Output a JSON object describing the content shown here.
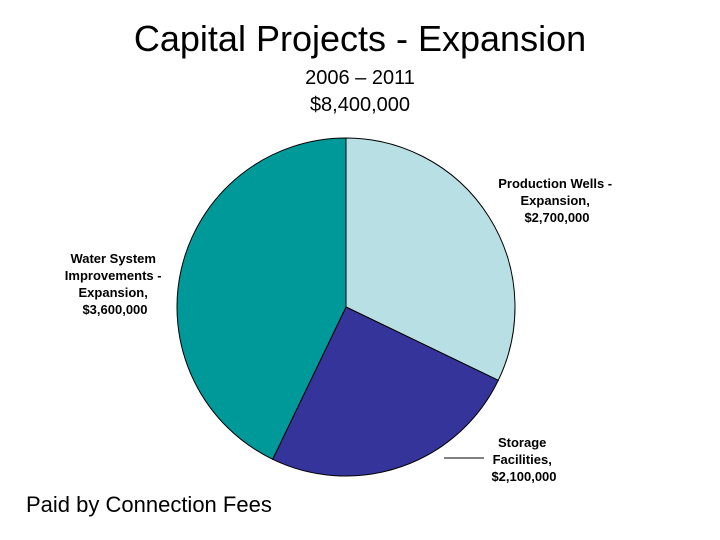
{
  "title": "Capital Projects - Expansion",
  "subtitle_years": "2006 – 2011",
  "subtitle_total": "$8,400,000",
  "footer": "Paid by Connection Fees",
  "chart_data": {
    "type": "pie",
    "title": "Capital Projects - Expansion",
    "start_angle_deg": 0,
    "direction": "clockwise",
    "slices": [
      {
        "label_lines": [
          "Production Wells -",
          "Expansion,",
          "$2,700,000"
        ],
        "value": 2700000,
        "color": "#b8dfe3"
      },
      {
        "label_lines": [
          "Storage",
          "Facilities,",
          "$2,100,000"
        ],
        "value": 2100000,
        "color": "#34349a"
      },
      {
        "label_lines": [
          "Water System",
          "Improvements -",
          "Expansion,",
          "$3,600,000"
        ],
        "value": 3600000,
        "color": "#009999"
      }
    ]
  }
}
